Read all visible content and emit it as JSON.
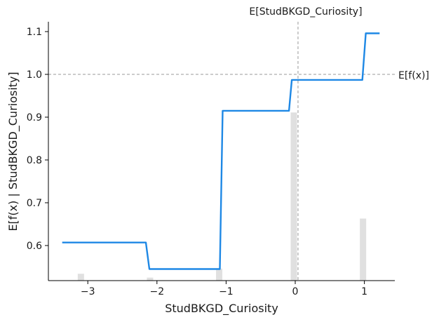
{
  "chart_data": {
    "type": "line",
    "xlabel": "StudBKGD_Curiosity",
    "ylabel": "E[f(x) | StudBKGD_Curiosity]",
    "xlim": [
      -3.57,
      1.44
    ],
    "ylim": [
      0.518,
      1.123
    ],
    "xticks": [
      -3,
      -2,
      -1,
      0,
      1
    ],
    "xtick_labels": [
      "−3",
      "−2",
      "−1",
      "0",
      "1"
    ],
    "yticks": [
      0.6,
      0.7,
      0.8,
      0.9,
      1.0,
      1.1
    ],
    "ytick_labels": [
      "0.6",
      "0.7",
      "0.8",
      "0.9",
      "1.0",
      "1.1"
    ],
    "grid": false,
    "line_color": "#1e88e5",
    "series": [
      {
        "x": [
          -3.37,
          -2.16,
          -2.11,
          -1.09,
          -1.05,
          -0.09,
          -0.05,
          0.97,
          1.02,
          1.22
        ],
        "y": [
          0.607,
          0.607,
          0.545,
          0.545,
          0.915,
          0.915,
          0.987,
          0.987,
          1.096,
          1.096
        ]
      }
    ],
    "histogram": {
      "color": "#e0e0e0",
      "x": [
        -3.1,
        -2.1,
        -1.1,
        -0.02,
        0.98
      ],
      "heights": [
        0.016,
        0.007,
        0.028,
        0.393,
        0.145
      ]
    },
    "reference_lines": {
      "vertical": {
        "x": 0.04,
        "label": "E[StudBKGD_Curiosity]"
      },
      "horizontal": {
        "y": 1.0,
        "label": "E[f(x)]"
      },
      "color": "#999999"
    }
  }
}
